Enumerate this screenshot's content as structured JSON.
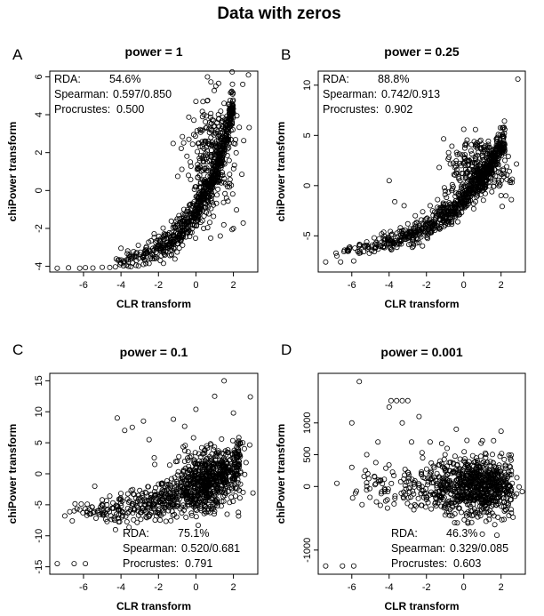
{
  "figure_title": "Data with zeros",
  "chart_data": [
    {
      "type": "scatter",
      "letter": "A",
      "title": "power = 1",
      "xlabel": "CLR transform",
      "ylabel": "chiPower transform",
      "xlim": [
        -7.8,
        3.3
      ],
      "ylim": [
        -4.3,
        6.3
      ],
      "xticks": [
        -6,
        -4,
        -2,
        0,
        2
      ],
      "yticks": [
        -4,
        -2,
        0,
        2,
        4,
        6
      ],
      "annotation_position": "top-left",
      "stats": [
        {
          "label": "RDA:",
          "value": "54.6%"
        },
        {
          "label": "Spearman:",
          "value": "0.597/0.850"
        },
        {
          "label": "Procrustes:",
          "value": "0.500"
        }
      ],
      "points": [
        [
          -7.4,
          -4.1
        ],
        [
          -6.8,
          -4.08
        ],
        [
          -6.2,
          -4.1
        ],
        [
          -5.9,
          -4.07
        ],
        [
          -5.5,
          -4.09
        ],
        [
          -5.0,
          -4.05
        ],
        [
          -4.6,
          -4.06
        ],
        [
          -4.3,
          -4.03
        ],
        [
          -4.0,
          -3.05
        ],
        [
          -3.6,
          -4.0
        ],
        [
          -3.2,
          -3.95
        ],
        [
          -2.8,
          -3.9
        ],
        [
          -2.5,
          -3.85
        ],
        [
          -2.2,
          -3.6
        ],
        [
          -1.9,
          -3.7
        ],
        [
          -1.6,
          -3.2
        ],
        [
          -1.3,
          -3.4
        ],
        [
          -1.0,
          -2.8
        ],
        [
          -0.7,
          -2.3
        ],
        [
          -0.5,
          -1.8
        ],
        [
          -0.3,
          -1.2
        ],
        [
          -0.1,
          -0.6
        ],
        [
          0.0,
          0.2
        ],
        [
          0.2,
          0.8
        ],
        [
          0.4,
          1.5
        ],
        [
          0.6,
          2.1
        ],
        [
          0.8,
          2.8
        ],
        [
          1.0,
          3.4
        ],
        [
          1.2,
          4.0
        ],
        [
          1.5,
          4.6
        ],
        [
          1.9,
          5.2
        ],
        [
          2.5,
          5.6
        ],
        [
          2.8,
          6.1
        ],
        [
          0.0,
          4.7
        ],
        [
          -1.0,
          -1.5
        ],
        [
          -0.4,
          0.8
        ],
        [
          1.3,
          -2.4
        ],
        [
          2.0,
          -2.0
        ]
      ],
      "trend": {
        "x0": -4.6,
        "x1": 2.0,
        "base": -4.0,
        "scale": 8.6,
        "rate": 0.55,
        "spread": 0.55,
        "count": 720
      },
      "cluster": {
        "cx": 0.9,
        "cy": 1.9,
        "sx": 0.7,
        "sy": 1.6,
        "count": 250
      }
    },
    {
      "type": "scatter",
      "letter": "B",
      "title": "power = 0.25",
      "xlabel": "CLR transform",
      "ylabel": "chiPower transform",
      "xlim": [
        -7.8,
        3.3
      ],
      "ylim": [
        -8.6,
        11.4
      ],
      "xticks": [
        -6,
        -4,
        -2,
        0,
        2
      ],
      "yticks": [
        -5,
        0,
        5,
        10
      ],
      "annotation_position": "top-left",
      "stats": [
        {
          "label": "RDA:",
          "value": "88.8%"
        },
        {
          "label": "Spearman:",
          "value": "0.742/0.913"
        },
        {
          "label": "Procrustes:",
          "value": "0.902"
        }
      ],
      "points": [
        [
          -7.4,
          -7.6
        ],
        [
          -6.8,
          -7.0
        ],
        [
          -6.6,
          -7.6
        ],
        [
          -6.2,
          -6.4
        ],
        [
          -5.9,
          -7.5
        ],
        [
          -5.6,
          -6.0
        ],
        [
          -5.2,
          -5.6
        ],
        [
          -4.8,
          -5.2
        ],
        [
          -4.4,
          -4.8
        ],
        [
          -4.0,
          0.5
        ],
        [
          -3.7,
          -1.6
        ],
        [
          -3.4,
          -4.2
        ],
        [
          -3.0,
          -3.8
        ],
        [
          -2.6,
          -3.0
        ],
        [
          -2.2,
          -2.6
        ],
        [
          -1.8,
          -2.0
        ],
        [
          -1.4,
          -1.4
        ],
        [
          -1.0,
          -0.9
        ],
        [
          -0.6,
          -0.3
        ],
        [
          -0.2,
          0.5
        ],
        [
          0.2,
          1.4
        ],
        [
          0.6,
          2.2
        ],
        [
          1.0,
          3.0
        ],
        [
          1.4,
          3.8
        ],
        [
          1.8,
          4.8
        ],
        [
          2.2,
          5.6
        ],
        [
          2.9,
          10.6
        ],
        [
          0.0,
          5.6
        ],
        [
          -3.2,
          -2.0
        ]
      ],
      "trend": {
        "x0": -7.0,
        "x1": 2.2,
        "base": -7.2,
        "scale": 12.0,
        "rate": 0.33,
        "spread": 0.8,
        "count": 760
      },
      "cluster": {
        "cx": 0.8,
        "cy": 1.5,
        "sx": 0.8,
        "sy": 1.5,
        "count": 260
      }
    },
    {
      "type": "scatter",
      "letter": "C",
      "title": "power = 0.1",
      "xlabel": "CLR transform",
      "ylabel": "chiPower transform",
      "xlim": [
        -7.8,
        3.3
      ],
      "ylim": [
        -16.2,
        16.2
      ],
      "xticks": [
        -6,
        -4,
        -2,
        0,
        2
      ],
      "yticks": [
        -15,
        -10,
        -5,
        0,
        5,
        10,
        15
      ],
      "annotation_position": "bottom-right",
      "stats": [
        {
          "label": "RDA:",
          "value": "75.1%"
        },
        {
          "label": "Spearman:",
          "value": "0.520/0.681"
        },
        {
          "label": "Procrustes:",
          "value": "0.791"
        }
      ],
      "points": [
        [
          -7.4,
          -14.5
        ],
        [
          -6.5,
          -14.5
        ],
        [
          -5.9,
          -14.5
        ],
        [
          -7.0,
          -6.8
        ],
        [
          -6.6,
          -7.6
        ],
        [
          -6.2,
          -5.8
        ],
        [
          -5.8,
          -4.9
        ],
        [
          -5.4,
          -2.0
        ],
        [
          -5.0,
          -4.2
        ],
        [
          -4.6,
          -3.6
        ],
        [
          -4.2,
          9.0
        ],
        [
          -3.8,
          7.0
        ],
        [
          -3.4,
          7.5
        ],
        [
          -3.0,
          -2.7
        ],
        [
          -2.8,
          8.5
        ],
        [
          -2.5,
          5.5
        ],
        [
          -2.2,
          1.5
        ],
        [
          -1.8,
          -1.5
        ],
        [
          -1.4,
          1.4
        ],
        [
          -1.0,
          2.0
        ],
        [
          -0.6,
          2.0
        ],
        [
          -0.2,
          0.5
        ],
        [
          0.2,
          1.5
        ],
        [
          0.6,
          2.5
        ],
        [
          1.0,
          12.5
        ],
        [
          1.5,
          15.0
        ],
        [
          2.0,
          9.8
        ],
        [
          2.5,
          5.0
        ],
        [
          2.9,
          12.4
        ],
        [
          0.0,
          10.4
        ],
        [
          -1.2,
          8.8
        ]
      ],
      "trend": {
        "x0": -7.0,
        "x1": 2.4,
        "base": -7.0,
        "scale": 9.0,
        "rate": 0.3,
        "spread": 2.2,
        "count": 720
      },
      "cluster": {
        "cx": 0.6,
        "cy": -0.5,
        "sx": 0.9,
        "sy": 2.6,
        "count": 300
      }
    },
    {
      "type": "scatter",
      "letter": "D",
      "title": "power = 0.001",
      "xlabel": "CLR transform",
      "ylabel": "chiPower transform",
      "xlim": [
        -7.8,
        3.3
      ],
      "ylim": [
        -1380,
        1780
      ],
      "xticks": [
        -6,
        -4,
        -2,
        0,
        2
      ],
      "yticks": [
        -1000,
        0,
        500,
        1000
      ],
      "annotation_position": "bottom-right",
      "stats": [
        {
          "label": "RDA:",
          "value": "46.3%"
        },
        {
          "label": "Spearman:",
          "value": "0.329/0.085"
        },
        {
          "label": "Procrustes:",
          "value": "0.603"
        }
      ],
      "points": [
        [
          -7.4,
          -1250
        ],
        [
          -6.5,
          -1250
        ],
        [
          -5.9,
          -1250
        ],
        [
          -5.6,
          1650
        ],
        [
          -6.0,
          1000
        ],
        [
          -3.9,
          1350
        ],
        [
          -3.6,
          1350
        ],
        [
          -3.3,
          1350
        ],
        [
          -3.0,
          1350
        ],
        [
          -4.0,
          1250
        ],
        [
          -3.3,
          1000
        ],
        [
          -2.4,
          1100
        ],
        [
          -4.6,
          700
        ],
        [
          -5.2,
          500
        ],
        [
          -2.8,
          700
        ],
        [
          -1.8,
          700
        ],
        [
          -0.4,
          900
        ],
        [
          1.0,
          720
        ],
        [
          1.6,
          720
        ],
        [
          -2.2,
          450
        ],
        [
          -1.0,
          500
        ],
        [
          2.5,
          450
        ],
        [
          -6.8,
          50
        ],
        [
          -6.0,
          300
        ]
      ],
      "trend": {
        "x0": -7.0,
        "x1": 2.6,
        "base": 0,
        "scale": 0,
        "rate": 0.1,
        "spread": 320,
        "count": 480
      },
      "cluster": {
        "cx": 0.6,
        "cy": 0,
        "sx": 0.9,
        "sy": 190,
        "count": 420
      }
    }
  ]
}
